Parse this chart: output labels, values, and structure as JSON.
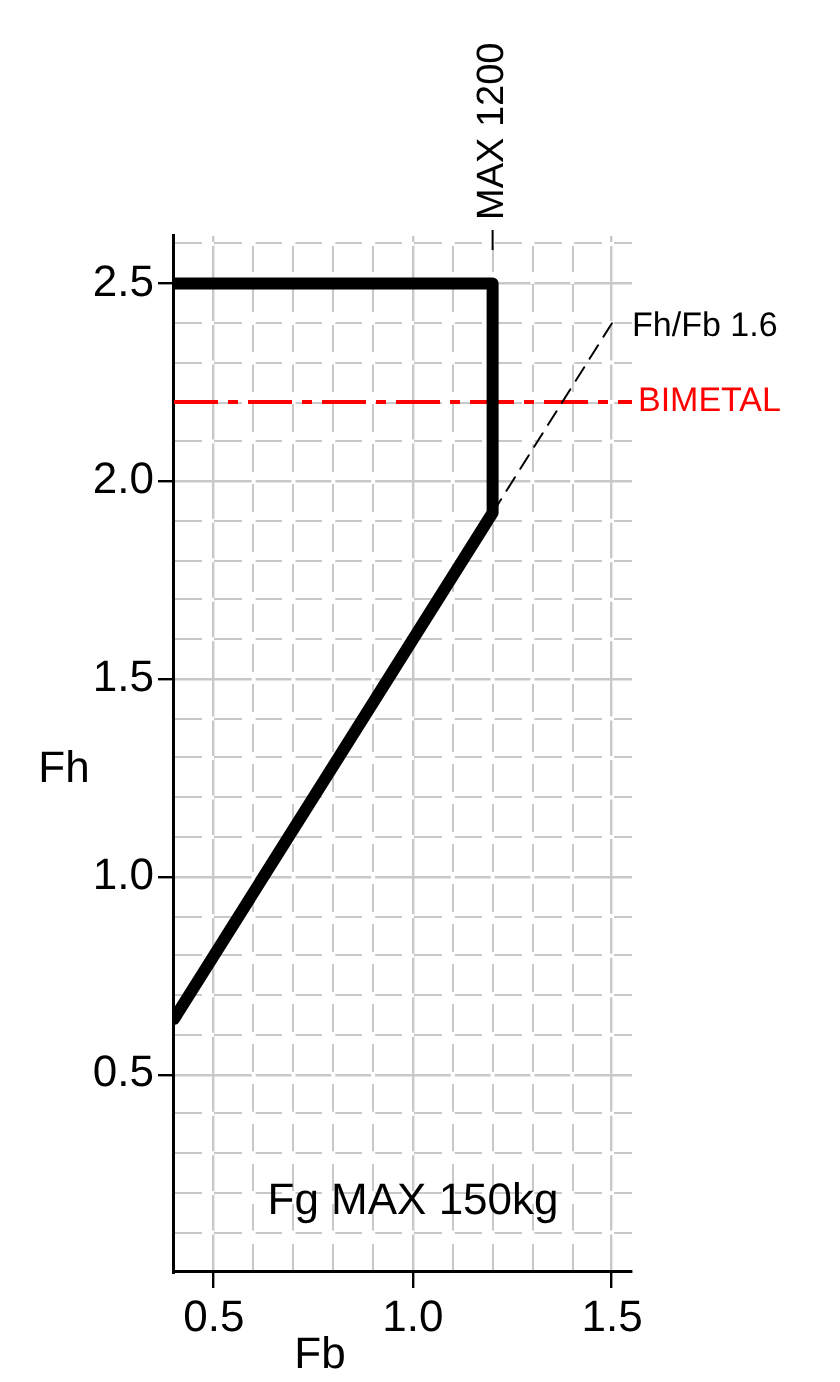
{
  "chart_data": {
    "type": "line",
    "xlabel": "Fb",
    "ylabel": "Fh",
    "xlim": [
      0.4,
      1.55
    ],
    "ylim": [
      0,
      2.62
    ],
    "xticks": [
      {
        "value": 0.5,
        "label": "0.5"
      },
      {
        "value": 0.6,
        "label": null
      },
      {
        "value": 0.7,
        "label": null
      },
      {
        "value": 0.8,
        "label": null
      },
      {
        "value": 0.9,
        "label": null
      },
      {
        "value": 1.0,
        "label": "1.0"
      },
      {
        "value": 1.1,
        "label": null
      },
      {
        "value": 1.2,
        "label": null
      },
      {
        "value": 1.3,
        "label": null
      },
      {
        "value": 1.4,
        "label": null
      },
      {
        "value": 1.5,
        "label": "1.5"
      }
    ],
    "yticks": [
      {
        "value": 0.1,
        "label": null
      },
      {
        "value": 0.2,
        "label": null
      },
      {
        "value": 0.3,
        "label": null
      },
      {
        "value": 0.4,
        "label": null
      },
      {
        "value": 0.5,
        "label": "0.5"
      },
      {
        "value": 0.6,
        "label": null
      },
      {
        "value": 0.7,
        "label": null
      },
      {
        "value": 0.8,
        "label": null
      },
      {
        "value": 0.9,
        "label": null
      },
      {
        "value": 1.0,
        "label": "1.0"
      },
      {
        "value": 1.1,
        "label": null
      },
      {
        "value": 1.2,
        "label": null
      },
      {
        "value": 1.3,
        "label": null
      },
      {
        "value": 1.4,
        "label": null
      },
      {
        "value": 1.5,
        "label": "1.5"
      },
      {
        "value": 1.6,
        "label": null
      },
      {
        "value": 1.7,
        "label": null
      },
      {
        "value": 1.8,
        "label": null
      },
      {
        "value": 1.9,
        "label": null
      },
      {
        "value": 2.0,
        "label": "2.0"
      },
      {
        "value": 2.1,
        "label": null
      },
      {
        "value": 2.2,
        "label": null
      },
      {
        "value": 2.3,
        "label": null
      },
      {
        "value": 2.4,
        "label": null
      },
      {
        "value": 2.5,
        "label": "2.5"
      },
      {
        "value": 2.6,
        "label": null
      }
    ],
    "grid": true,
    "legend": false,
    "marker": "none",
    "series": [
      {
        "color": "#000000",
        "line_style": "solid",
        "x": [
          0.4,
          1.2,
          1.2,
          0.4
        ],
        "values": [
          0.64,
          1.92,
          2.5,
          2.5
        ]
      },
      {
        "name": "Fh/Fb 1.6",
        "color": "#000000",
        "line_style": "dashed",
        "x": [
          1.2,
          1.5
        ],
        "values": [
          1.92,
          2.4
        ]
      }
    ],
    "ref_lines": [
      {
        "axis": "y",
        "value": 2.2,
        "label": "BIMETAL",
        "color": "#ff0000",
        "line_style": "dashed"
      }
    ],
    "annotations": [
      {
        "text": "MAX 1200",
        "x": 1.2
      },
      "Fg MAX 150kg"
    ]
  }
}
